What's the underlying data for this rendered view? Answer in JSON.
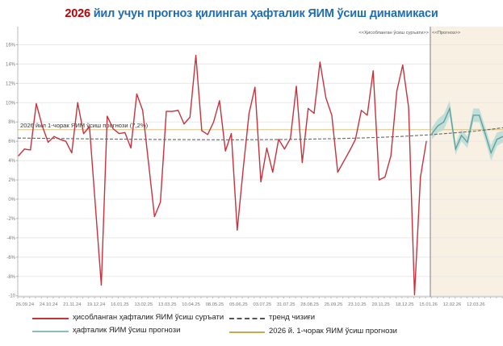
{
  "title": {
    "year": "2026",
    "rest": " йил учун прогноз қилинган ҳафталик ЯИМ ўсиш динамикаси"
  },
  "colors": {
    "actual": "#c8323c",
    "forecast": "#5a9e98",
    "forecast_band": "#b3dad5",
    "trend": "#666666",
    "q1_forecast": "#c9a94b",
    "forecast_bg": "#f8f0e3",
    "title_year": "#c00000",
    "title": "#1f6db4"
  },
  "chart_data": {
    "type": "line",
    "title": "2026 йил учун прогноз қилинган ҳафталик ЯИМ ўсиш динамикаси",
    "frequency": "weekly",
    "y_ticks": [
      "16%",
      "14%",
      "12%",
      "10%",
      "8%",
      "6%",
      "4%",
      "2%",
      "0%",
      "-2%",
      "-4%",
      "-6%",
      "-8%",
      "-10"
    ],
    "ylim": [
      -10,
      16
    ],
    "grid": true,
    "x_tick_labels": [
      "26.09.24",
      "24.10.24",
      "21.11.24",
      "19.12.24",
      "16.01.25",
      "13.02.25",
      "13.03.25",
      "10.04.25",
      "08.05.25",
      "05.06.25",
      "03.07.25",
      "31.07.25",
      "28.08.25",
      "25.09.25",
      "23.10.25",
      "20.11.25",
      "18.12.25",
      "15.01.26",
      "12.02.26",
      "12.03.26"
    ],
    "region_labels": {
      "actual": "<<Ҳисобланган ўсиш суръати>>",
      "forecast": "<<Прогноз>>"
    },
    "series": [
      {
        "name": "ҳисобланган ҳафталик ЯИМ ўсиш суръати",
        "values": [
          4.5,
          5.2,
          5.1,
          9.9,
          7.6,
          5.9,
          6.5,
          6.2,
          6.0,
          4.8,
          10.0,
          6.8,
          7.5,
          -0.7,
          -8.9,
          8.6,
          7.3,
          6.8,
          6.9,
          5.3,
          10.9,
          9.2,
          3.7,
          -1.8,
          -0.3,
          9.1,
          9.1,
          9.2,
          7.8,
          8.5,
          14.9,
          7.1,
          6.7,
          8.0,
          10.2,
          5.0,
          6.8,
          -3.2,
          3.1,
          8.9,
          11.6,
          1.8,
          5.3,
          2.8,
          6.2,
          5.2,
          6.3,
          11.7,
          3.8,
          9.4,
          8.9,
          14.2,
          10.5,
          8.7,
          2.8,
          3.9,
          5.0,
          6.2,
          9.2,
          8.7,
          13.3,
          2.0,
          2.3,
          4.5,
          11.2,
          13.9,
          9.5,
          -9.9,
          2.3,
          6.0
        ]
      },
      {
        "name": "ҳафталик ЯИМ ўсиш прогнози",
        "values": [
          6.8,
          7.6,
          8.0,
          9.4,
          5.2,
          6.6,
          5.9,
          8.7,
          8.7,
          6.8,
          4.8,
          6.2,
          6.5
        ],
        "lower": [
          6.2,
          6.9,
          7.2,
          8.6,
          4.6,
          6.0,
          5.3,
          8.0,
          8.0,
          6.1,
          4.0,
          5.5,
          5.9
        ],
        "upper": [
          7.4,
          8.3,
          8.8,
          10.2,
          5.8,
          7.2,
          6.5,
          9.4,
          9.4,
          7.5,
          5.6,
          6.9,
          7.1
        ]
      },
      {
        "name": "тренд чизиғи",
        "values_at_ticks": [
          6.33,
          6.3,
          6.27,
          6.24,
          6.22,
          6.2,
          6.18,
          6.17,
          6.16,
          6.16,
          6.17,
          6.19,
          6.22,
          6.27,
          6.33,
          6.41,
          6.52,
          6.66,
          6.85,
          7.05
        ],
        "end_value": 7.4
      },
      {
        "name": "2026 й. 1-чорак ЯИМ ўсиш прогнози",
        "value": 7.2
      }
    ],
    "annotation": "2026 йил 1-чорак ЯИМ ўсиш прогнози (7,2%)",
    "legend_position": "bottom"
  }
}
